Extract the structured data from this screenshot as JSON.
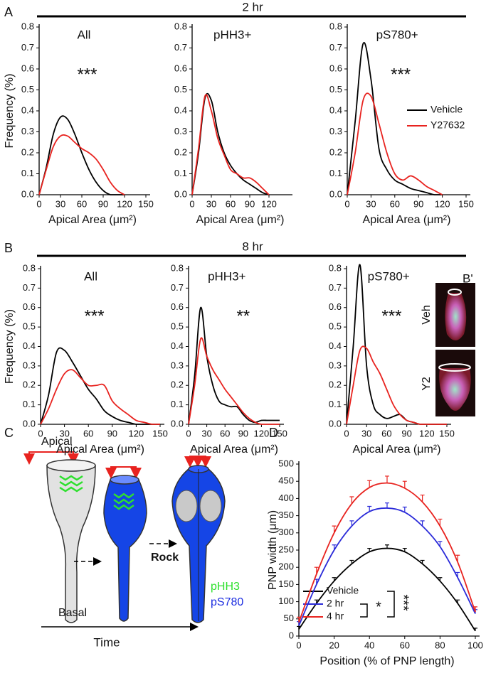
{
  "figure": {
    "panel_labels": [
      "A",
      "B",
      "B'",
      "C",
      "D"
    ],
    "row_titles": [
      "2 hr",
      "8 hr"
    ]
  },
  "inset": {
    "labels": [
      "Veh",
      "Y2"
    ]
  },
  "diagram": {
    "apical": "Apical",
    "basal": "Basal",
    "time": "Time",
    "rock": "Rock",
    "markers": [
      "pHH3",
      "pS780"
    ]
  },
  "chart_data": [
    {
      "type": "line",
      "title": "All",
      "annotations": [
        "***"
      ],
      "ylabel": "Frequency (%)",
      "xlabel": "Apical Area (μm²)",
      "x": [
        0,
        10,
        20,
        30,
        40,
        50,
        60,
        70,
        80,
        90,
        100,
        110,
        120
      ],
      "series": [
        {
          "color": "#000000",
          "values": [
            0,
            0.13,
            0.29,
            0.37,
            0.36,
            0.29,
            0.2,
            0.12,
            0.06,
            0.02,
            0,
            0,
            0
          ]
        },
        {
          "color": "#e8231f",
          "values": [
            0,
            0.12,
            0.23,
            0.28,
            0.28,
            0.25,
            0.22,
            0.2,
            0.17,
            0.12,
            0.06,
            0.02,
            0
          ]
        }
      ],
      "xlim": [
        0,
        150
      ],
      "ylim": [
        0,
        0.8
      ],
      "xticks": [
        0,
        30,
        60,
        90,
        120,
        150
      ],
      "yticks": [
        {
          "value": 0,
          "label": "0.0"
        },
        0.1,
        0.2,
        0.3,
        0.4,
        0.5,
        0.6,
        0.7,
        0.8
      ]
    },
    {
      "type": "line",
      "title": "pHH3+",
      "xlabel": "Apical Area (μm²)",
      "x": [
        0,
        10,
        20,
        30,
        40,
        50,
        60,
        70,
        80,
        90,
        100,
        110,
        120
      ],
      "series": [
        {
          "color": "#000000",
          "values": [
            0,
            0.2,
            0.46,
            0.45,
            0.3,
            0.2,
            0.14,
            0.1,
            0.07,
            0.05,
            0.03,
            0.01,
            0
          ]
        },
        {
          "color": "#e8231f",
          "values": [
            0,
            0.22,
            0.47,
            0.4,
            0.27,
            0.19,
            0.12,
            0.1,
            0.08,
            0.08,
            0.06,
            0.03,
            0
          ]
        }
      ],
      "xlim": [
        0,
        150
      ],
      "ylim": [
        0,
        0.8
      ],
      "xticks": [
        0,
        30,
        60,
        90,
        120
      ],
      "yticks": [
        {
          "value": 0,
          "label": "0.0"
        },
        0.1,
        0.2,
        0.3,
        0.4,
        0.5,
        0.6,
        0.7,
        0.8
      ]
    },
    {
      "type": "line",
      "title": "pS780+",
      "annotations": [
        "***"
      ],
      "xlabel": "Apical Area (μm²)",
      "x": [
        0,
        10,
        20,
        30,
        40,
        50,
        60,
        70,
        80,
        90,
        100,
        110,
        120
      ],
      "series": [
        {
          "name": "Vehicle",
          "color": "#000000",
          "values": [
            0,
            0.35,
            0.72,
            0.55,
            0.22,
            0.12,
            0.07,
            0.05,
            0.03,
            0.02,
            0.01,
            0,
            0
          ]
        },
        {
          "name": "Y27632",
          "color": "#e8231f",
          "values": [
            0,
            0.2,
            0.45,
            0.47,
            0.34,
            0.2,
            0.1,
            0.07,
            0.09,
            0.07,
            0.04,
            0.02,
            0
          ]
        }
      ],
      "xlim": [
        0,
        150
      ],
      "ylim": [
        0,
        0.8
      ],
      "xticks": [
        0,
        30,
        60,
        90,
        120,
        150
      ],
      "yticks": [
        {
          "value": 0,
          "label": "0.0"
        },
        0.1,
        0.2,
        0.3,
        0.4,
        0.5,
        0.6,
        0.7,
        0.8
      ]
    },
    {
      "type": "line",
      "title": "All",
      "annotations": [
        "***"
      ],
      "ylabel": "Frequency (%)",
      "xlabel": "Apical Area (μm²)",
      "x": [
        0,
        10,
        20,
        30,
        40,
        50,
        60,
        70,
        80,
        90,
        100,
        110,
        120,
        130,
        140,
        150
      ],
      "series": [
        {
          "color": "#000000",
          "values": [
            0,
            0.15,
            0.37,
            0.38,
            0.32,
            0.25,
            0.18,
            0.13,
            0.07,
            0.04,
            0.02,
            0.01,
            0,
            0,
            0,
            0
          ]
        },
        {
          "color": "#e8231f",
          "values": [
            0,
            0.08,
            0.18,
            0.26,
            0.28,
            0.24,
            0.2,
            0.2,
            0.2,
            0.12,
            0.08,
            0.05,
            0.02,
            0.01,
            0,
            0
          ]
        }
      ],
      "xlim": [
        0,
        150
      ],
      "ylim": [
        0,
        0.8
      ],
      "xticks": [
        0,
        30,
        60,
        90,
        120,
        150
      ],
      "yticks": [
        {
          "value": 0,
          "label": "0.0"
        },
        0.1,
        0.2,
        0.3,
        0.4,
        0.5,
        0.6,
        0.7,
        0.8
      ]
    },
    {
      "type": "line",
      "title": "pHH3+",
      "annotations": [
        "**"
      ],
      "xlabel": "Apical Area (μm²)",
      "x": [
        0,
        10,
        20,
        30,
        40,
        50,
        60,
        70,
        80,
        90,
        100,
        110,
        120,
        130,
        140,
        150
      ],
      "series": [
        {
          "color": "#000000",
          "values": [
            0,
            0.25,
            0.6,
            0.35,
            0.2,
            0.12,
            0.1,
            0.09,
            0.09,
            0.05,
            0.02,
            0.01,
            0.02,
            0.02,
            0.02,
            0.02
          ]
        },
        {
          "color": "#e8231f",
          "values": [
            0,
            0.2,
            0.44,
            0.35,
            0.28,
            0.23,
            0.18,
            0.14,
            0.1,
            0.06,
            0.03,
            0.01,
            0,
            0,
            0,
            0
          ]
        }
      ],
      "xlim": [
        0,
        150
      ],
      "ylim": [
        0,
        0.8
      ],
      "xticks": [
        0,
        30,
        60,
        90,
        120,
        150
      ],
      "yticks": [
        {
          "value": 0,
          "label": "0.0"
        },
        0.1,
        0.2,
        0.3,
        0.4,
        0.5,
        0.6,
        0.7,
        0.8
      ]
    },
    {
      "type": "line",
      "title": "pS780+",
      "annotations": [
        "***"
      ],
      "xlabel": "Apical Area (μm²)",
      "x": [
        0,
        10,
        20,
        30,
        40,
        50,
        60,
        70,
        80,
        90,
        100,
        110,
        120,
        130,
        140,
        150
      ],
      "series": [
        {
          "color": "#000000",
          "values": [
            0,
            0.4,
            0.82,
            0.3,
            0.1,
            0.05,
            0.03,
            0.04,
            0.05,
            0.02,
            0.01,
            0,
            0,
            0,
            0,
            0
          ]
        },
        {
          "color": "#e8231f",
          "values": [
            0,
            0.2,
            0.38,
            0.39,
            0.32,
            0.26,
            0.18,
            0.1,
            0.05,
            0.02,
            0.01,
            0,
            0,
            0,
            0,
            0
          ]
        }
      ],
      "xlim": [
        0,
        150
      ],
      "ylim": [
        0,
        0.8
      ],
      "xticks": [
        0,
        30,
        60,
        90,
        120,
        150
      ],
      "yticks": [
        {
          "value": 0,
          "label": "0.0"
        },
        0.1,
        0.2,
        0.3,
        0.4,
        0.5,
        0.6,
        0.7,
        0.8
      ]
    },
    {
      "type": "errorline",
      "annotations": [
        "*",
        "***"
      ],
      "ylabel": "PNP width (μm)",
      "xlabel": "Position (% of PNP length)",
      "x": [
        0,
        10,
        20,
        30,
        40,
        50,
        60,
        70,
        80,
        90,
        100
      ],
      "series": [
        {
          "name": "Vehicle",
          "color": "#000000",
          "values": [
            20,
            95,
            160,
            210,
            245,
            255,
            245,
            210,
            160,
            95,
            15
          ],
          "errors": [
            8,
            10,
            10,
            10,
            10,
            10,
            10,
            10,
            10,
            10,
            8
          ]
        },
        {
          "name": "2 hr",
          "color": "#2b2bd9",
          "values": [
            30,
            150,
            250,
            320,
            362,
            372,
            360,
            320,
            260,
            170,
            65
          ],
          "errors": [
            12,
            15,
            15,
            15,
            15,
            15,
            15,
            15,
            15,
            15,
            12
          ]
        },
        {
          "name": "4 hr",
          "color": "#e8231f",
          "values": [
            40,
            180,
            300,
            385,
            432,
            445,
            430,
            390,
            320,
            215,
            70
          ],
          "errors": [
            15,
            20,
            20,
            20,
            20,
            20,
            20,
            20,
            20,
            20,
            15
          ]
        }
      ],
      "xlim": [
        0,
        100
      ],
      "ylim": [
        0,
        500
      ],
      "xticks": [
        0,
        20,
        40,
        60,
        80,
        100
      ],
      "yticks": [
        0,
        50,
        100,
        150,
        200,
        250,
        300,
        350,
        400,
        450,
        500
      ]
    }
  ]
}
